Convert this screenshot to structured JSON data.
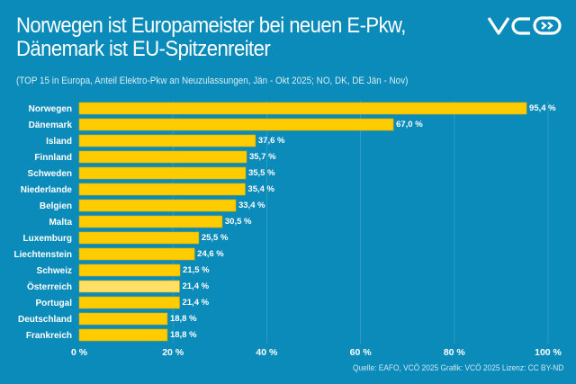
{
  "title_line1": "Norwegen ist Europameister bei neuen E-Pkw,",
  "title_line2": "Dänemark ist EU-Spitzenreiter",
  "subtitle": "(TOP 15 in Europa, Anteil Elektro-Pkw an Neuzulassungen, Jän - Okt 2025; NO, DK, DE Jän - Nov)",
  "logo_text": "VCÖ",
  "source": "Quelle: EAFO, VCÖ 2025 Grafik: VCÖ 2025 Lizenz: CC BY-ND",
  "colors": {
    "background": "#0b8bb9",
    "bar": "#ffcc00",
    "highlight_bar": "#ffe066"
  },
  "chart_data": {
    "type": "bar",
    "orientation": "horizontal",
    "categories": [
      "Norwegen",
      "Dänemark",
      "Island",
      "Finnland",
      "Schweden",
      "Niederlande",
      "Belgien",
      "Malta",
      "Luxemburg",
      "Liechtenstein",
      "Schweiz",
      "Österreich",
      "Portugal",
      "Deutschland",
      "Frankreich"
    ],
    "values": [
      95.4,
      67.0,
      37.6,
      35.7,
      35.5,
      35.4,
      33.4,
      30.5,
      25.5,
      24.6,
      21.5,
      21.4,
      21.4,
      18.8,
      18.8
    ],
    "value_labels": [
      "95,4 %",
      "67,0 %",
      "37,6 %",
      "35,7 %",
      "35,5 %",
      "35,4 %",
      "33,4 %",
      "30,5 %",
      "25,5 %",
      "24,6 %",
      "21,5 %",
      "21,4 %",
      "21,4 %",
      "18,8 %",
      "18,8 %"
    ],
    "highlight": "Österreich",
    "xlim": [
      0,
      100
    ],
    "xticks": [
      0,
      20,
      40,
      60,
      80,
      100
    ],
    "xtick_labels": [
      "0 %",
      "20 %",
      "40 %",
      "60 %",
      "80 %",
      "100 %"
    ],
    "grid": true
  }
}
